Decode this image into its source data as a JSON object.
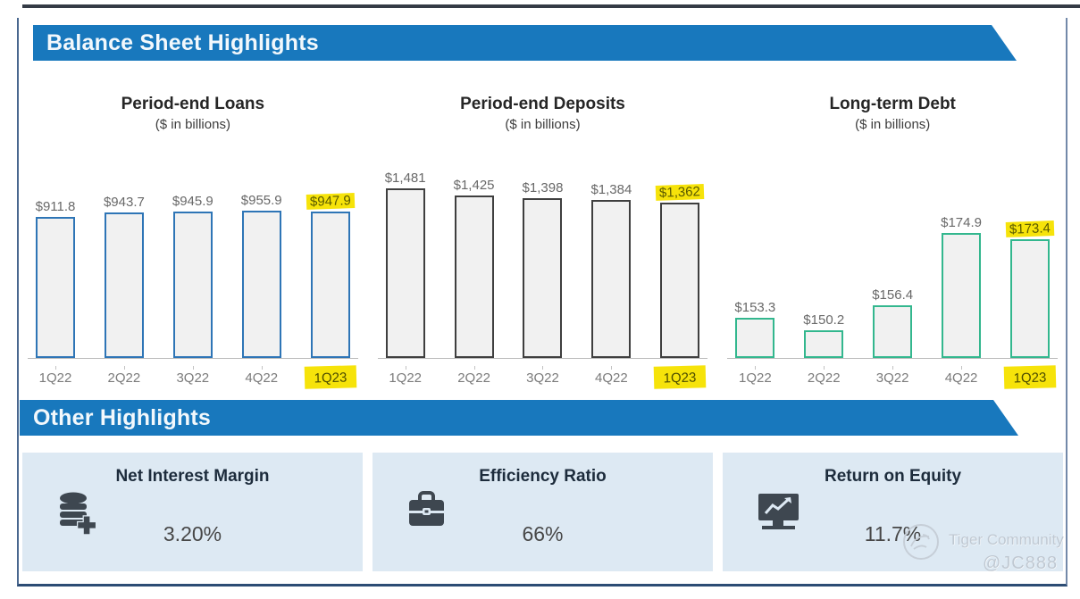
{
  "sections": {
    "balance": {
      "title": "Balance Sheet Highlights"
    },
    "other": {
      "title": "Other Highlights"
    }
  },
  "chart_data": [
    {
      "type": "bar",
      "title": "Period-end Loans",
      "subtitle": "($ in billions)",
      "categories": [
        "1Q22",
        "2Q22",
        "3Q22",
        "4Q22",
        "1Q23"
      ],
      "values": [
        911.8,
        943.7,
        945.9,
        955.9,
        947.9
      ],
      "labels": [
        "$911.8",
        "$943.7",
        "$945.9",
        "$955.9",
        "$947.9"
      ],
      "ylim": [
        0,
        960
      ],
      "highlight_index": 4,
      "bar_color": "#2e75b6",
      "grid": false,
      "legend": false
    },
    {
      "type": "bar",
      "title": "Period-end Deposits",
      "subtitle": "($ in billions)",
      "categories": [
        "1Q22",
        "2Q22",
        "3Q22",
        "4Q22",
        "1Q23"
      ],
      "values": [
        1481,
        1425,
        1398,
        1384,
        1362
      ],
      "labels": [
        "$1,481",
        "$1,425",
        "$1,398",
        "$1,384",
        "$1,362"
      ],
      "ylim": [
        0,
        1500
      ],
      "highlight_index": 4,
      "bar_color": "#3f3f3f",
      "grid": false,
      "legend": false
    },
    {
      "type": "bar",
      "title": "Long-term Debt",
      "subtitle": "($ in billions)",
      "categories": [
        "1Q22",
        "2Q22",
        "3Q22",
        "4Q22",
        "1Q23"
      ],
      "values": [
        153.3,
        150.2,
        156.4,
        174.9,
        173.4
      ],
      "labels": [
        "$153.3",
        "$150.2",
        "$156.4",
        "$174.9",
        "$173.4"
      ],
      "ylim": [
        143,
        175
      ],
      "highlight_index": 4,
      "bar_color": "#33b78e",
      "grid": false,
      "legend": false
    }
  ],
  "metrics": [
    {
      "title": "Net Interest Margin",
      "value": "3.20%",
      "icon": "coins-plus-icon"
    },
    {
      "title": "Efficiency Ratio",
      "value": "66%",
      "icon": "briefcase-icon"
    },
    {
      "title": "Return on Equity",
      "value": "11.7%",
      "icon": "chart-presentation-icon"
    }
  ],
  "watermark": {
    "brand": "Tiger Community",
    "user": "@JC888"
  },
  "colors": {
    "banner_blue": "#1878bd",
    "highlight_yellow": "#f6e30a",
    "loans_bar": "#2e75b6",
    "deposits_bar": "#3f3f3f",
    "debt_bar": "#33b78e",
    "bar_fill": "#f1f1f1",
    "card_bg": "#dde9f3"
  }
}
